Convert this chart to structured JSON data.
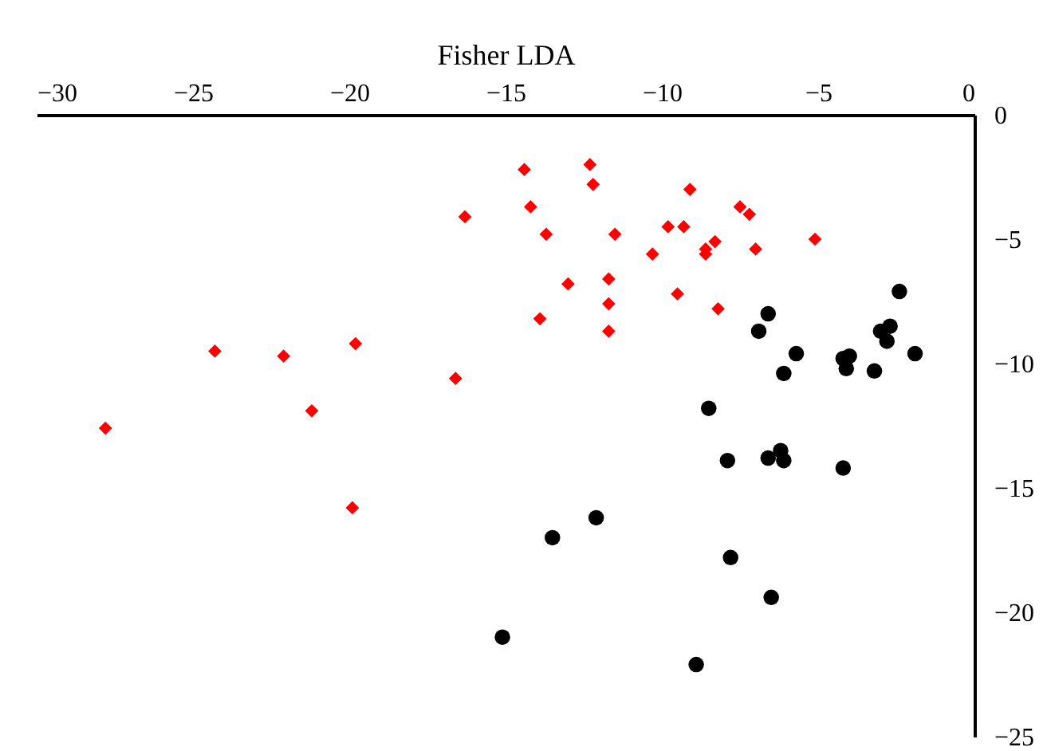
{
  "chart_data": {
    "type": "scatter",
    "xlabel": "Fisher LDA",
    "xlim": [
      -30,
      0
    ],
    "xticks": [
      -30,
      -25,
      -20,
      -15,
      -10,
      -5,
      0
    ],
    "ylim": [
      -25,
      0
    ],
    "yticks": [
      -25,
      -20,
      -15,
      -10,
      -5,
      0
    ],
    "grid": false,
    "series": [
      {
        "color": "#ff0000",
        "marker": "diamond",
        "x": [
          -27.8,
          -24.3,
          -22.1,
          -21.2,
          -19.8,
          -19.9,
          -16.3,
          -16.6,
          -14.4,
          -14.2,
          -13.7,
          -13.9,
          -13.0,
          -12.3,
          -12.2,
          -11.5,
          -11.7,
          -11.7,
          -11.7,
          -10.3,
          -9.8,
          -9.3,
          -9.1,
          -9.5,
          -8.6,
          -8.6,
          -8.3,
          -8.2,
          -7.5,
          -7.2,
          -7.0,
          -5.1
        ],
        "values": [
          -12.6,
          -9.5,
          -9.7,
          -11.9,
          -9.2,
          -15.8,
          -4.1,
          -10.6,
          -2.2,
          -3.7,
          -4.8,
          -8.2,
          -6.8,
          -2.0,
          -2.8,
          -4.8,
          -6.6,
          -7.6,
          -8.7,
          -5.6,
          -4.5,
          -4.5,
          -3.0,
          -7.2,
          -5.6,
          -5.4,
          -5.1,
          -7.8,
          -3.7,
          -4.0,
          -5.4,
          -5.0
        ]
      },
      {
        "color": "#000000",
        "marker": "circle",
        "x": [
          -2.4,
          -6.6,
          -6.9,
          -5.7,
          -6.1,
          -4.2,
          -4.0,
          -4.1,
          -3.2,
          -3.0,
          -2.7,
          -2.8,
          -1.9,
          -8.5,
          -7.9,
          -6.6,
          -6.2,
          -6.1,
          -4.2,
          -12.1,
          -13.5,
          -7.8,
          -6.5,
          -15.1,
          -8.9
        ],
        "values": [
          -7.1,
          -8.0,
          -8.7,
          -9.6,
          -10.4,
          -9.8,
          -9.7,
          -10.2,
          -10.3,
          -8.7,
          -8.5,
          -9.1,
          -9.6,
          -11.8,
          -13.9,
          -13.8,
          -13.5,
          -13.9,
          -14.2,
          -16.2,
          -17.0,
          -17.8,
          -19.4,
          -21.0,
          -22.1
        ]
      }
    ]
  }
}
